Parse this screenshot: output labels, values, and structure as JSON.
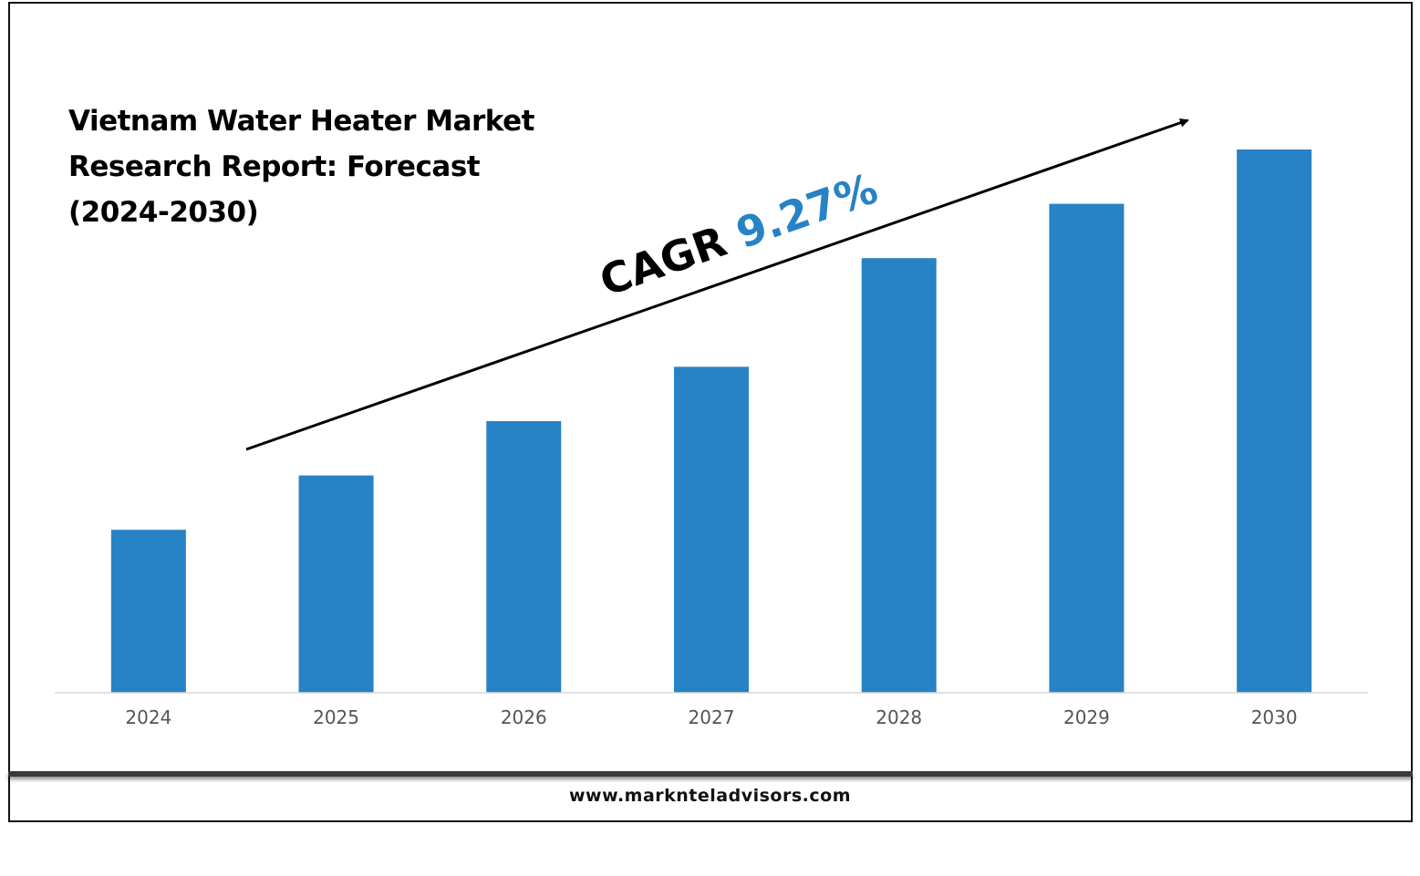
{
  "title_lines": [
    "Vietnam Water Heater Market",
    "Research Report: Forecast",
    "(2024-2030)"
  ],
  "annotation": {
    "prefix": "CAGR ",
    "value": "9.27%"
  },
  "footer": {
    "url": "www.marknteladvisors.com"
  },
  "colors": {
    "bar": "#2782C6",
    "cagr_value": "#2782C6",
    "text": "#000000",
    "tick": "#555555"
  },
  "chart_data": {
    "type": "bar",
    "title": "Vietnam Water Heater Market Research Report: Forecast (2024-2030)",
    "categories": [
      "2024",
      "2025",
      "2026",
      "2027",
      "2028",
      "2029",
      "2030"
    ],
    "values": [
      30,
      40,
      50,
      60,
      80,
      90,
      100
    ],
    "value_scale": "relative (no y-axis or value labels printed)",
    "ylim": [
      0,
      100
    ],
    "grid": false,
    "legend": "none",
    "cagr": "9.27%"
  }
}
